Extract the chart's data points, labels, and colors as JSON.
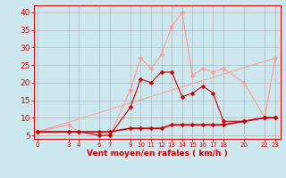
{
  "background_color": "#cce8ee",
  "grid_color": "#aaaaaa",
  "xlabel": "Vent moyen/en rafales ( km/h )",
  "xlabel_color": "#cc0000",
  "ylabel_color": "#cc0000",
  "ylim": [
    4,
    42
  ],
  "yticks": [
    5,
    10,
    15,
    20,
    25,
    30,
    35,
    40
  ],
  "xlim": [
    -0.3,
    23.5
  ],
  "x_positions": [
    0,
    3,
    4,
    6,
    7,
    9,
    10,
    11,
    12,
    13,
    14,
    15,
    16,
    17,
    18,
    20,
    22,
    23
  ],
  "xtick_labels": [
    "0",
    "3",
    "4",
    "6",
    "7",
    "9",
    "10",
    "11",
    "12",
    "13",
    "14",
    "15",
    "16",
    "17",
    "18",
    "20",
    "22",
    "23"
  ],
  "line1_x": [
    0,
    3,
    4,
    6,
    7,
    9,
    10,
    11,
    12,
    13,
    14,
    15,
    16,
    17,
    18,
    20,
    22,
    23
  ],
  "line1_y": [
    6,
    6,
    6,
    6,
    6,
    7,
    7,
    7,
    7,
    8,
    8,
    8,
    8,
    8,
    8,
    9,
    10,
    10
  ],
  "line1_color": "#cc0000",
  "line1_linewidth": 1.2,
  "line2_x": [
    0,
    3,
    4,
    6,
    7,
    9,
    10,
    11,
    12,
    13,
    14,
    15,
    16,
    17,
    18,
    20,
    22,
    23
  ],
  "line2_y": [
    6,
    6,
    6,
    5,
    5,
    13,
    21,
    20,
    23,
    23,
    16,
    17,
    19,
    17,
    9,
    9,
    10,
    10
  ],
  "line2_color": "#cc0000",
  "line2_linewidth": 0.8,
  "line3_x": [
    0,
    3,
    4,
    6,
    7,
    9,
    10,
    11,
    12,
    13,
    14,
    15,
    16,
    17,
    18,
    20,
    22,
    23
  ],
  "line3_y": [
    6,
    8,
    6,
    6,
    5,
    18,
    27,
    24,
    28,
    36,
    40,
    22,
    24,
    23,
    24,
    20,
    10,
    27
  ],
  "line3_color": "#ff9999",
  "line3_linewidth": 0.8,
  "line4_x": [
    0,
    23
  ],
  "line4_y": [
    6,
    27
  ],
  "line4_color": "#ff9999",
  "line4_linewidth": 0.7,
  "marker_size": 2.5,
  "marker_color_dark": "#cc0000",
  "marker_color_light": "#ff9999"
}
